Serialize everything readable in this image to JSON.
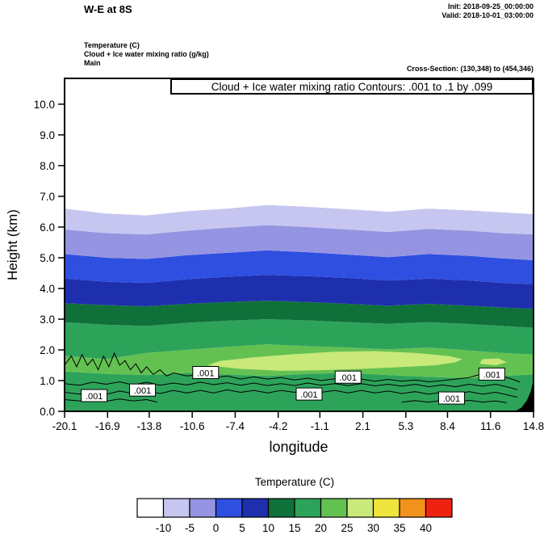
{
  "header": {
    "title": "W-E at 8S",
    "init_label": "Init: 2018-09-25_00:00:00",
    "valid_label": "Valid: 2018-10-01_03:00:00",
    "field_lines": [
      "Temperature  (C)",
      "Cloud + Ice water mixing ratio  (g/kg)",
      "Main"
    ],
    "cross_section_label": "Cross-Section: (130,348) to (454,346)"
  },
  "chart_data": {
    "type": "area",
    "subtype": "filled_contour_vertical_cross_section",
    "title": "W-E at 8S",
    "annotation": "Cloud + Ice water mixing ratio Contours: .001 to .1 by .099",
    "xlabel": "longitude",
    "ylabel": "Height (km)",
    "xlim": [
      -20.1,
      14.8
    ],
    "ylim": [
      0,
      10.84
    ],
    "xticks": [
      -20.1,
      -16.9,
      -13.8,
      -10.6,
      -7.4,
      -4.2,
      -1.1,
      2.1,
      5.3,
      8.4,
      11.6,
      14.8
    ],
    "yticks": [
      0,
      1,
      2,
      3,
      4,
      5,
      6,
      7,
      8,
      9,
      10
    ],
    "grid": false,
    "temperature_fill": {
      "x": [
        -20.1,
        -17,
        -14,
        -11,
        -8,
        -5,
        -2,
        1,
        4,
        7,
        10,
        12.5,
        14.8
      ],
      "bands_bottom_up": [
        {
          "range_c": "15 to 20 (marine boundary layer)",
          "color": "#2da35a",
          "top_km": [
            1.3,
            1.22,
            1.18,
            1.25,
            1.2,
            1.15,
            1.22,
            1.25,
            1.18,
            1.12,
            1.08,
            1.15,
            1.2
          ]
        },
        {
          "range_c": "20 to 25",
          "color": "#63c152",
          "top_km": [
            1.8,
            1.7,
            1.9,
            2.0,
            2.1,
            2.18,
            2.12,
            2.08,
            2.02,
            2.08,
            1.98,
            1.9,
            1.85
          ]
        },
        {
          "range_c": "15 to 20",
          "color": "#2da35a",
          "top_km": [
            2.9,
            2.82,
            2.78,
            2.88,
            2.95,
            3.0,
            2.96,
            2.9,
            2.85,
            2.9,
            2.84,
            2.78,
            2.72
          ]
        },
        {
          "range_c": "10 to 15",
          "color": "#10703a",
          "top_km": [
            3.52,
            3.46,
            3.42,
            3.5,
            3.56,
            3.6,
            3.56,
            3.5,
            3.44,
            3.5,
            3.44,
            3.38,
            3.34
          ]
        },
        {
          "range_c": "5 to 10",
          "color": "#1e2fae",
          "top_km": [
            4.32,
            4.22,
            4.18,
            4.3,
            4.38,
            4.44,
            4.4,
            4.34,
            4.26,
            4.32,
            4.26,
            4.18,
            4.14
          ]
        },
        {
          "range_c": "0 to 5",
          "color": "#2e4fe0",
          "top_km": [
            5.12,
            5.0,
            4.96,
            5.08,
            5.16,
            5.24,
            5.18,
            5.1,
            5.02,
            5.12,
            5.06,
            4.98,
            4.92
          ]
        },
        {
          "range_c": "-5 to 0",
          "color": "#9494e2",
          "top_km": [
            5.92,
            5.8,
            5.76,
            5.88,
            5.98,
            6.06,
            6.0,
            5.92,
            5.84,
            5.94,
            5.88,
            5.8,
            5.76
          ]
        },
        {
          "range_c": "-10 to -5",
          "color": "#c6c6f0",
          "top_km": [
            6.6,
            6.44,
            6.38,
            6.52,
            6.6,
            6.72,
            6.66,
            6.58,
            6.5,
            6.6,
            6.54,
            6.48,
            6.42
          ]
        },
        {
          "range_c": "below -10",
          "color": "#ffffff",
          "top_km": null
        }
      ],
      "warm_blobs": [
        {
          "range_c": "25 to 30",
          "color": "#c9e97b",
          "polygon": [
            [
              -9.5,
              1.5
            ],
            [
              -7,
              1.38
            ],
            [
              -4,
              1.32
            ],
            [
              -1,
              1.34
            ],
            [
              2,
              1.38
            ],
            [
              5,
              1.44
            ],
            [
              7.5,
              1.5
            ],
            [
              9,
              1.6
            ],
            [
              9.5,
              1.7
            ],
            [
              8.5,
              1.8
            ],
            [
              6,
              1.9
            ],
            [
              3,
              1.96
            ],
            [
              0,
              1.94
            ],
            [
              -3,
              1.86
            ],
            [
              -6,
              1.76
            ],
            [
              -8.5,
              1.64
            ]
          ]
        },
        {
          "range_c": "25 to 30",
          "color": "#c9e97b",
          "polygon": [
            [
              10.8,
              1.55
            ],
            [
              12,
              1.5
            ],
            [
              12.8,
              1.6
            ],
            [
              12.2,
              1.72
            ],
            [
              11,
              1.7
            ]
          ]
        }
      ]
    },
    "cloud_contours": {
      "label": ".001",
      "levels": ".001 to .1 by .099",
      "polylines": [
        [
          [
            -20.1,
            1.5
          ],
          [
            -19.6,
            1.8
          ],
          [
            -19.2,
            1.45
          ],
          [
            -18.8,
            1.85
          ],
          [
            -18.4,
            1.5
          ],
          [
            -18,
            1.7
          ],
          [
            -17.6,
            1.35
          ],
          [
            -17.2,
            1.8
          ],
          [
            -16.8,
            1.45
          ],
          [
            -16.4,
            1.9
          ],
          [
            -16,
            1.5
          ],
          [
            -15.6,
            1.65
          ],
          [
            -15.2,
            1.35
          ],
          [
            -14.8,
            1.55
          ],
          [
            -14.4,
            1.25
          ],
          [
            -14,
            1.45
          ],
          [
            -13.5,
            1.2
          ],
          [
            -13,
            1.35
          ],
          [
            -12.5,
            1.15
          ],
          [
            -12,
            1.25
          ],
          [
            -11,
            1.15
          ],
          [
            -10,
            1.2
          ],
          [
            -9,
            1.1
          ],
          [
            -8,
            1.15
          ],
          [
            -7,
            1.05
          ],
          [
            -6,
            1.12
          ],
          [
            -5,
            1.05
          ],
          [
            -4,
            1.1
          ],
          [
            -3,
            1.02
          ],
          [
            -2,
            1.08
          ],
          [
            -1,
            1.0
          ],
          [
            0,
            1.06
          ],
          [
            1,
            1.0
          ],
          [
            2,
            1.05
          ],
          [
            3,
            0.98
          ],
          [
            4,
            1.04
          ],
          [
            5,
            0.98
          ],
          [
            6,
            1.02
          ],
          [
            7,
            0.96
          ],
          [
            8,
            1.0
          ],
          [
            9,
            1.05
          ],
          [
            10,
            1.1
          ],
          [
            10.8,
            1.2
          ],
          [
            11.4,
            1.1
          ],
          [
            12,
            1.22
          ],
          [
            12.6,
            1.12
          ],
          [
            13.2,
            1.05
          ],
          [
            13.8,
            0.95
          ]
        ],
        [
          [
            -20.1,
            0.62
          ],
          [
            -19,
            0.56
          ],
          [
            -18,
            0.64
          ],
          [
            -17,
            0.55
          ],
          [
            -16,
            0.66
          ],
          [
            -15,
            0.58
          ],
          [
            -14,
            0.66
          ],
          [
            -13,
            0.58
          ],
          [
            -12,
            0.68
          ],
          [
            -11,
            0.6
          ],
          [
            -10,
            0.68
          ],
          [
            -9,
            0.6
          ],
          [
            -8,
            0.7
          ],
          [
            -7,
            0.62
          ],
          [
            -6,
            0.68
          ],
          [
            -5,
            0.6
          ],
          [
            -4,
            0.68
          ],
          [
            -3,
            0.62
          ],
          [
            -2,
            0.7
          ],
          [
            -1,
            0.62
          ],
          [
            0,
            0.68
          ],
          [
            1,
            0.6
          ],
          [
            2,
            0.68
          ],
          [
            3,
            0.6
          ],
          [
            4,
            0.66
          ],
          [
            5,
            0.58
          ],
          [
            6,
            0.64
          ],
          [
            7,
            0.56
          ],
          [
            8,
            0.62
          ],
          [
            9,
            0.56
          ],
          [
            10,
            0.64
          ],
          [
            11,
            0.56
          ],
          [
            12,
            0.62
          ],
          [
            13,
            0.52
          ],
          [
            13.6,
            0.46
          ]
        ],
        [
          [
            -20.1,
            0.9
          ],
          [
            -19,
            0.85
          ],
          [
            -18,
            0.95
          ],
          [
            -17,
            0.88
          ],
          [
            -16,
            0.96
          ],
          [
            -15,
            0.86
          ],
          [
            -14,
            0.95
          ],
          [
            -13,
            0.85
          ],
          [
            -12,
            0.92
          ],
          [
            -11,
            0.86
          ],
          [
            -10,
            0.95
          ],
          [
            -9,
            0.87
          ],
          [
            -8,
            0.93
          ],
          [
            -7,
            0.85
          ],
          [
            -6,
            0.92
          ],
          [
            -5,
            0.84
          ],
          [
            -4,
            0.9
          ],
          [
            -3,
            0.84
          ],
          [
            -2,
            0.92
          ],
          [
            -1,
            0.85
          ],
          [
            0,
            0.9
          ],
          [
            1,
            0.84
          ],
          [
            2,
            0.9
          ],
          [
            3,
            0.83
          ],
          [
            4,
            0.88
          ],
          [
            5,
            0.82
          ],
          [
            6,
            0.88
          ],
          [
            7,
            0.8
          ],
          [
            8,
            0.86
          ],
          [
            9,
            0.8
          ],
          [
            10,
            0.88
          ],
          [
            11,
            0.82
          ],
          [
            12,
            0.88
          ],
          [
            13,
            0.78
          ],
          [
            13.6,
            0.7
          ]
        ],
        [
          [
            -20.1,
            0.38
          ],
          [
            -19,
            0.34
          ],
          [
            -18,
            0.4
          ],
          [
            -17,
            0.33
          ],
          [
            -16,
            0.4
          ],
          [
            -15,
            0.34
          ],
          [
            -14,
            0.38
          ],
          [
            -13.2,
            0.3
          ]
        ],
        [
          [
            5,
            0.3
          ],
          [
            6,
            0.35
          ],
          [
            7,
            0.3
          ],
          [
            8,
            0.36
          ],
          [
            9,
            0.3
          ],
          [
            10,
            0.36
          ],
          [
            11,
            0.3
          ],
          [
            12,
            0.34
          ],
          [
            12.8,
            0.28
          ]
        ]
      ],
      "label_positions": [
        [
          -17.9,
          0.5
        ],
        [
          -14.3,
          0.68
        ],
        [
          -9.6,
          1.25
        ],
        [
          -1.9,
          0.55
        ],
        [
          1.0,
          1.1
        ],
        [
          8.7,
          0.42
        ],
        [
          11.7,
          1.2
        ]
      ]
    },
    "terrain": {
      "color": "#000000",
      "polygon": [
        [
          13.4,
          0
        ],
        [
          13.9,
          0.12
        ],
        [
          14.3,
          0.35
        ],
        [
          14.6,
          0.65
        ],
        [
          14.8,
          1.05
        ],
        [
          14.8,
          0
        ]
      ]
    },
    "colorbar": {
      "title": "Temperature  (C)",
      "colors": [
        "#ffffff",
        "#c6c6f0",
        "#9494e2",
        "#2e4fe0",
        "#1e2fae",
        "#10703a",
        "#2da35a",
        "#63c152",
        "#c9e97b",
        "#f0e53c",
        "#f2911c",
        "#ee2211"
      ],
      "tick_labels": [
        "-10",
        "-5",
        "0",
        "5",
        "10",
        "15",
        "20",
        "25",
        "30",
        "35",
        "40"
      ]
    }
  }
}
